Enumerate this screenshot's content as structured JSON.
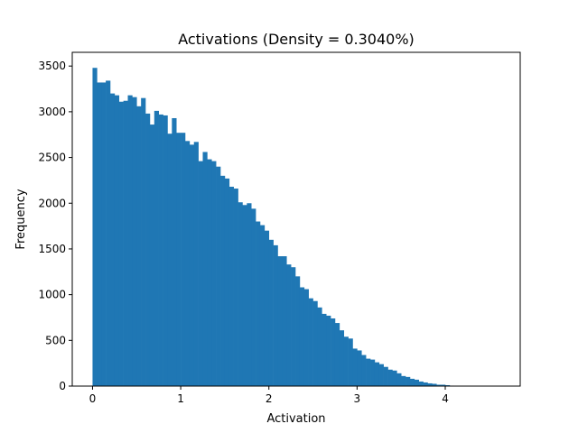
{
  "chart_data": {
    "type": "bar",
    "title": "Activations (Density = 0.3040%)",
    "xlabel": "Activation",
    "ylabel": "Frequency",
    "xlim": [
      -0.23,
      4.85
    ],
    "ylim": [
      0,
      3650
    ],
    "xticks": [
      0,
      1,
      2,
      3,
      4
    ],
    "yticks": [
      0,
      500,
      1000,
      1500,
      2000,
      2500,
      3000,
      3500
    ],
    "bin_start": 0.0,
    "bin_width": 0.05,
    "values": [
      3480,
      3320,
      3320,
      3340,
      3200,
      3180,
      3110,
      3120,
      3180,
      3160,
      3060,
      3150,
      2980,
      2860,
      3010,
      2970,
      2960,
      2760,
      2930,
      2770,
      2770,
      2680,
      2640,
      2670,
      2460,
      2560,
      2480,
      2460,
      2400,
      2300,
      2270,
      2180,
      2160,
      2010,
      1980,
      2000,
      1940,
      1800,
      1760,
      1700,
      1600,
      1540,
      1420,
      1420,
      1330,
      1300,
      1200,
      1080,
      1060,
      960,
      930,
      860,
      790,
      770,
      740,
      690,
      610,
      540,
      520,
      410,
      390,
      340,
      300,
      290,
      260,
      240,
      210,
      180,
      170,
      140,
      110,
      100,
      80,
      70,
      50,
      40,
      30,
      25,
      15,
      15,
      10,
      5,
      3,
      2,
      1,
      1,
      1,
      1,
      1,
      1,
      1,
      1,
      1
    ]
  },
  "colors": {
    "bar": "#1f77b4",
    "axis": "#000000"
  }
}
